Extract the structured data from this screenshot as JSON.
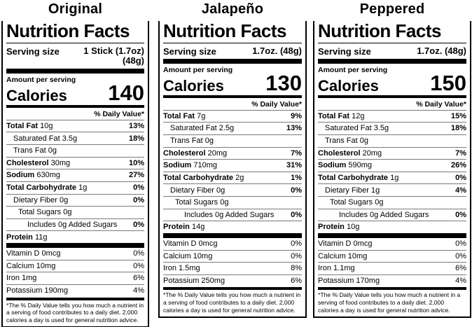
{
  "page": {
    "background": "#ffffff",
    "text_color": "#000000",
    "hairline_color": "#7a7a7a"
  },
  "labels": [
    {
      "title": "Original",
      "nf_title": "Nutrition Facts",
      "serving_size_label": "Serving size",
      "serving_size_lines": [
        "1 Stick (1.7oz)",
        "(48g)"
      ],
      "amount_per_serving": "Amount per serving",
      "calories_label": "Calories",
      "calories_value": "140",
      "daily_value_header": "% Daily Value*",
      "nutrients": [
        {
          "name": "Total Fat",
          "amount": "10g",
          "dv": "13%",
          "bold": true,
          "indent": 0
        },
        {
          "name": "Saturated Fat",
          "amount": "3.5g",
          "dv": "18%",
          "bold": false,
          "indent": 1
        },
        {
          "name": "Trans Fat",
          "amount": "0g",
          "dv": "",
          "bold": false,
          "indent": 1
        },
        {
          "name": "Cholesterol",
          "amount": "30mg",
          "dv": "10%",
          "bold": true,
          "indent": 0
        },
        {
          "name": "Sodium",
          "amount": "630mg",
          "dv": "27%",
          "bold": true,
          "indent": 0
        },
        {
          "name": "Total Carbohydrate",
          "amount": "1g",
          "dv": "0%",
          "bold": true,
          "indent": 0
        },
        {
          "name": "Dietary Fiber",
          "amount": "0g",
          "dv": "0%",
          "bold": false,
          "indent": 1
        },
        {
          "name": "Total Sugars",
          "amount": "0g",
          "dv": "",
          "bold": false,
          "indent": 2
        },
        {
          "name": "Includes 0g Added Sugars",
          "amount": "",
          "dv": "0%",
          "bold": false,
          "indent": 3
        },
        {
          "name": "Protein",
          "amount": "11g",
          "dv": "",
          "bold": true,
          "indent": 0
        }
      ],
      "micronutrients": [
        {
          "name": "Vitamin D",
          "amount": "0mcg",
          "dv": "0%"
        },
        {
          "name": "Calcium",
          "amount": "10mg",
          "dv": "0%"
        },
        {
          "name": "Iron",
          "amount": "1mg",
          "dv": "6%"
        },
        {
          "name": "Potassium",
          "amount": "190mg",
          "dv": "4%"
        }
      ],
      "footnote": "*The % Daily Value tells you how much a nutrient in a serving of food contributes to a daily diet. 2,000 calories a day is used for general nutrition advice."
    },
    {
      "title": "Jalapeño",
      "nf_title": "Nutrition Facts",
      "serving_size_label": "Serving size",
      "serving_size_lines": [
        "1.7oz. (48g)"
      ],
      "amount_per_serving": "Amount per serving",
      "calories_label": "Calories",
      "calories_value": "130",
      "daily_value_header": "% Daily Value*",
      "nutrients": [
        {
          "name": "Total Fat",
          "amount": "7g",
          "dv": "9%",
          "bold": true,
          "indent": 0
        },
        {
          "name": "Saturated Fat",
          "amount": "2.5g",
          "dv": "13%",
          "bold": false,
          "indent": 1
        },
        {
          "name": "Trans Fat",
          "amount": "0g",
          "dv": "",
          "bold": false,
          "indent": 1
        },
        {
          "name": "Cholesterol",
          "amount": "20mg",
          "dv": "7%",
          "bold": true,
          "indent": 0
        },
        {
          "name": "Sodium",
          "amount": "710mg",
          "dv": "31%",
          "bold": true,
          "indent": 0
        },
        {
          "name": "Total Carbohydrate",
          "amount": "2g",
          "dv": "1%",
          "bold": true,
          "indent": 0
        },
        {
          "name": "Dietary Fiber",
          "amount": "0g",
          "dv": "0%",
          "bold": false,
          "indent": 1
        },
        {
          "name": "Total Sugars",
          "amount": "0g",
          "dv": "",
          "bold": false,
          "indent": 2
        },
        {
          "name": "Includes 0g Added Sugars",
          "amount": "",
          "dv": "0%",
          "bold": false,
          "indent": 3
        },
        {
          "name": "Protein",
          "amount": "14g",
          "dv": "",
          "bold": true,
          "indent": 0
        }
      ],
      "micronutrients": [
        {
          "name": "Vitamin D",
          "amount": "0mcg",
          "dv": "0%"
        },
        {
          "name": "Calcium",
          "amount": "10mg",
          "dv": "0%"
        },
        {
          "name": "Iron",
          "amount": "1.5mg",
          "dv": "8%"
        },
        {
          "name": "Potassium",
          "amount": "250mg",
          "dv": "6%"
        }
      ],
      "footnote": "*The % Daily Value tells you how much a nutrient in a serving of food contributes to a daily diet. 2,000 calories a day is used for general nutrition advice."
    },
    {
      "title": "Peppered",
      "nf_title": "Nutrition Facts",
      "serving_size_label": "Serving size",
      "serving_size_lines": [
        "1.7oz. (48g)"
      ],
      "amount_per_serving": "Amount per serving",
      "calories_label": "Calories",
      "calories_value": "150",
      "daily_value_header": "% Daily Value*",
      "nutrients": [
        {
          "name": "Total Fat",
          "amount": "12g",
          "dv": "15%",
          "bold": true,
          "indent": 0
        },
        {
          "name": "Saturated Fat",
          "amount": "3.5g",
          "dv": "18%",
          "bold": false,
          "indent": 1
        },
        {
          "name": "Trans Fat",
          "amount": "0g",
          "dv": "",
          "bold": false,
          "indent": 1
        },
        {
          "name": "Cholesterol",
          "amount": "20mg",
          "dv": "7%",
          "bold": true,
          "indent": 0
        },
        {
          "name": "Sodium",
          "amount": "590mg",
          "dv": "26%",
          "bold": true,
          "indent": 0
        },
        {
          "name": "Total Carbohydrate",
          "amount": "1g",
          "dv": "0%",
          "bold": true,
          "indent": 0
        },
        {
          "name": "Dietary Fiber",
          "amount": "1g",
          "dv": "4%",
          "bold": false,
          "indent": 1
        },
        {
          "name": "Total Sugars",
          "amount": "0g",
          "dv": "",
          "bold": false,
          "indent": 2
        },
        {
          "name": "Includes 0g Added Sugars",
          "amount": "",
          "dv": "0%",
          "bold": false,
          "indent": 3
        },
        {
          "name": "Protein",
          "amount": "10g",
          "dv": "",
          "bold": true,
          "indent": 0
        }
      ],
      "micronutrients": [
        {
          "name": "Vitamin D",
          "amount": "0mcg",
          "dv": "0%"
        },
        {
          "name": "Calcium",
          "amount": "10mg",
          "dv": "0%"
        },
        {
          "name": "Iron",
          "amount": "1.1mg",
          "dv": "6%"
        },
        {
          "name": "Potassium",
          "amount": "170mg",
          "dv": "4%"
        }
      ],
      "footnote": "*The % Daily Value tells you how much a nutrient in a serving of food contributes to a daily diet. 2,000 calories a day is used for general nutrition advice."
    }
  ]
}
